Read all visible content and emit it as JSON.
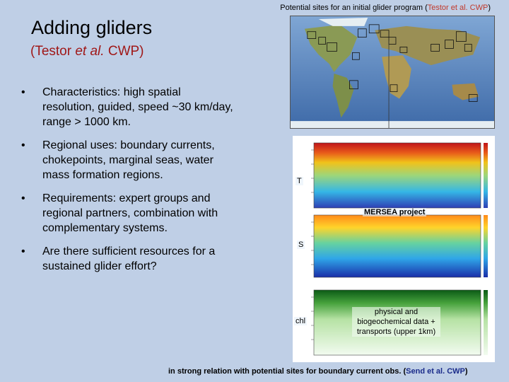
{
  "top_caption": {
    "prefix": "Potential sites for an initial glider program (",
    "citation": "Testor et al. CWP",
    "suffix": ")"
  },
  "title": "Adding gliders",
  "subtitle": {
    "open": "(Testor ",
    "etal": "et al.",
    "close": " CWP)"
  },
  "bullets": [
    "Characteristics: high spatial resolution, guided, speed ~30 km/day, range > 1000 km.",
    "Regional uses: boundary currents, chokepoints, marginal seas, water mass formation regions.",
    "Requirements: expert groups and regional partners, combination with complementary systems.",
    "Are there sufficient resources for a sustained glider effort?"
  ],
  "bullet_char": "•",
  "plot_labels": {
    "T": "T",
    "S": "S",
    "chl": "chl",
    "mersea": "MERSEA project",
    "phys": "physical and biogeochemical data + transports (upper 1km)"
  },
  "bottom_caption": {
    "prefix": "in strong relation with potential sites for boundary current obs. (",
    "citation": "Send et al. CWP",
    "suffix": ")"
  }
}
